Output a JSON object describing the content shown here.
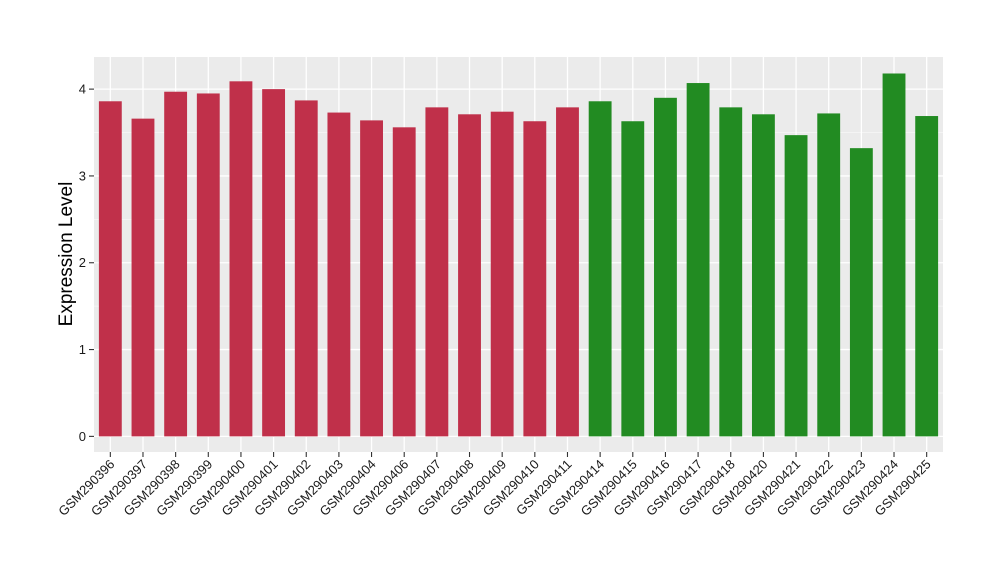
{
  "chart_data": {
    "type": "bar",
    "title": "",
    "xlabel": "",
    "ylabel": "Expression Level",
    "ylim": [
      -0.18,
      4.37
    ],
    "yticks": [
      0,
      1,
      2,
      3,
      4
    ],
    "ytick_labels": [
      "0",
      "1",
      "2",
      "3",
      "4"
    ],
    "grid": true,
    "panel_background": "#ebebeb",
    "categories": [
      "GSM290396",
      "GSM290397",
      "GSM290398",
      "GSM290399",
      "GSM290400",
      "GSM290401",
      "GSM290402",
      "GSM290403",
      "GSM290404",
      "GSM290406",
      "GSM290407",
      "GSM290408",
      "GSM290409",
      "GSM290410",
      "GSM290411",
      "GSM290414",
      "GSM290415",
      "GSM290416",
      "GSM290417",
      "GSM290418",
      "GSM290420",
      "GSM290421",
      "GSM290422",
      "GSM290423",
      "GSM290424",
      "GSM290425"
    ],
    "values": [
      3.86,
      3.66,
      3.97,
      3.95,
      4.09,
      4.0,
      3.87,
      3.73,
      3.64,
      3.56,
      3.79,
      3.71,
      3.74,
      3.63,
      3.79,
      3.86,
      3.63,
      3.9,
      4.07,
      3.79,
      3.71,
      3.47,
      3.72,
      3.32,
      4.18,
      3.69
    ],
    "bar_colors": [
      "#c0304a",
      "#c0304a",
      "#c0304a",
      "#c0304a",
      "#c0304a",
      "#c0304a",
      "#c0304a",
      "#c0304a",
      "#c0304a",
      "#c0304a",
      "#c0304a",
      "#c0304a",
      "#c0304a",
      "#c0304a",
      "#c0304a",
      "#228b22",
      "#228b22",
      "#228b22",
      "#228b22",
      "#228b22",
      "#228b22",
      "#228b22",
      "#228b22",
      "#228b22",
      "#228b22",
      "#228b22"
    ]
  }
}
